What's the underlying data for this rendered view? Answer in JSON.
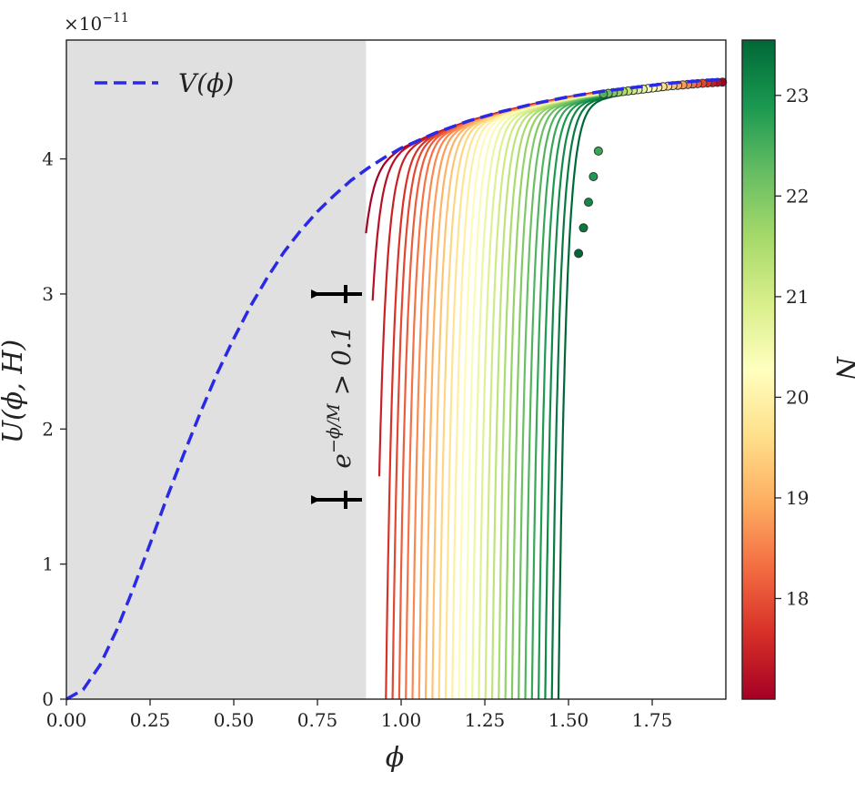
{
  "chart_data": {
    "type": "line",
    "xlabel": "ϕ",
    "ylabel": "U(ϕ, H)",
    "y_scale_label": "×10",
    "y_scale_exponent": "−11",
    "xlim": [
      0.0,
      1.97
    ],
    "ylim": [
      0,
      4.88
    ],
    "x_ticks": [
      "0.00",
      "0.25",
      "0.50",
      "0.75",
      "1.00",
      "1.25",
      "1.50",
      "1.75"
    ],
    "y_ticks": [
      "0",
      "1",
      "2",
      "3",
      "4"
    ],
    "legend": {
      "position": "top-left",
      "label": "V(ϕ)"
    },
    "potential_curve": {
      "name": "V(ϕ)",
      "style": "dashed",
      "color": "#2a2ae6",
      "x": [
        0.0,
        0.05,
        0.1,
        0.15,
        0.2,
        0.25,
        0.3,
        0.35,
        0.4,
        0.45,
        0.5,
        0.55,
        0.6,
        0.65,
        0.7,
        0.75,
        0.8,
        0.85,
        0.9,
        0.95,
        1.0,
        1.1,
        1.2,
        1.3,
        1.4,
        1.5,
        1.6,
        1.7,
        1.8,
        1.9,
        1.97
      ],
      "y": [
        0.0,
        0.07,
        0.25,
        0.51,
        0.82,
        1.15,
        1.49,
        1.81,
        2.12,
        2.41,
        2.67,
        2.91,
        3.12,
        3.31,
        3.47,
        3.61,
        3.73,
        3.84,
        3.93,
        4.01,
        4.08,
        4.19,
        4.28,
        4.35,
        4.41,
        4.46,
        4.5,
        4.53,
        4.56,
        4.58,
        4.59
      ]
    },
    "shaded_region": {
      "x_range": [
        0.0,
        0.895
      ],
      "color": "#e0e0e0"
    },
    "curve_family": {
      "count": 30,
      "color_variable": "N",
      "start_x_range": [
        0.895,
        1.47
      ],
      "end_x": 1.97,
      "end_y": 4.6,
      "endpoint_markers": true
    },
    "annotation": {
      "text": "e^{−ϕ/M} > 0.1",
      "base": "e",
      "exponent": "−ϕ/M",
      "relation": " > 0.1",
      "arrows": "two left-pointing arrows at ϕ ≈ 0.9"
    },
    "colorbar": {
      "label": "N",
      "range": [
        17.0,
        23.55
      ],
      "ticks": [
        "18",
        "19",
        "20",
        "21",
        "22",
        "23"
      ],
      "colormap": [
        "#a50026",
        "#d73027",
        "#f46d43",
        "#fdae61",
        "#fee08b",
        "#ffffbf",
        "#d9ef8b",
        "#a6d96a",
        "#66bd63",
        "#1a9850",
        "#006837"
      ]
    }
  }
}
